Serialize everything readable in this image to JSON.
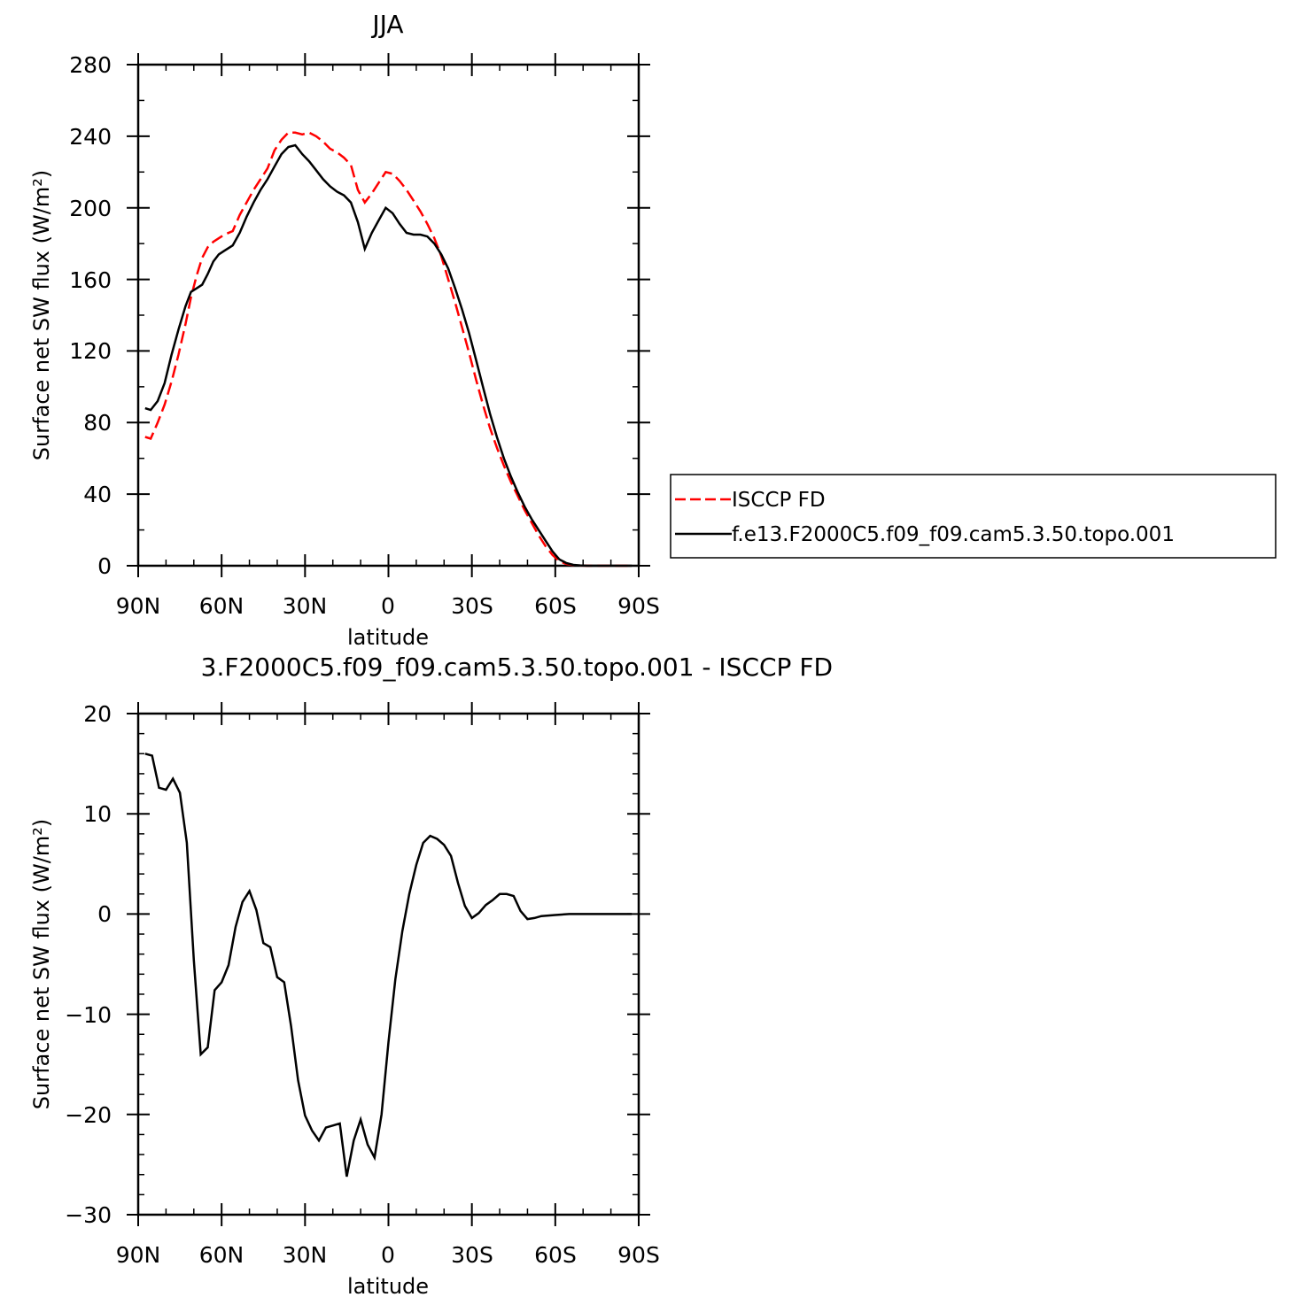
{
  "chart_data": [
    {
      "type": "line",
      "title": "JJA",
      "xlabel": "latitude",
      "ylabel": "Surface net SW flux (W/m²)",
      "xlim": [
        90,
        -90
      ],
      "ylim": [
        0,
        280
      ],
      "xticks": [
        90,
        60,
        30,
        0,
        -30,
        -60,
        -90
      ],
      "xtick_labels": [
        "90N",
        "60N",
        "30N",
        "0",
        "30S",
        "60S",
        "90S"
      ],
      "yticks": [
        0,
        40,
        80,
        120,
        160,
        200,
        240,
        280
      ],
      "ytick_labels": [
        "0",
        "40",
        "80",
        "120",
        "160",
        "200",
        "240",
        "280"
      ],
      "legend_position": "right",
      "series": [
        {
          "name": "ISCCP FD",
          "color": "#ff0000",
          "style": "dashed",
          "points": [
            [
              87.5,
              72
            ],
            [
              85.5,
              71
            ],
            [
              83,
              80
            ],
            [
              80.5,
              90
            ],
            [
              78,
              103
            ],
            [
              75.5,
              118
            ],
            [
              73,
              135
            ],
            [
              71,
              150
            ],
            [
              69,
              162
            ],
            [
              67,
              172
            ],
            [
              65,
              178
            ],
            [
              63,
              181
            ],
            [
              61,
              183
            ],
            [
              59,
              185
            ],
            [
              56,
              187
            ],
            [
              53.5,
              196
            ],
            [
              51,
              203
            ],
            [
              48.5,
              210
            ],
            [
              46,
              216
            ],
            [
              43.5,
              222
            ],
            [
              41,
              232
            ],
            [
              38.5,
              238
            ],
            [
              36,
              242
            ],
            [
              33.5,
              242
            ],
            [
              31,
              241
            ],
            [
              28.5,
              242
            ],
            [
              26,
              240
            ],
            [
              23.5,
              237
            ],
            [
              21,
              233
            ],
            [
              18.5,
              231
            ],
            [
              16,
              228
            ],
            [
              13.5,
              224
            ],
            [
              11,
              210
            ],
            [
              8.5,
              203
            ],
            [
              6,
              208
            ],
            [
              3.5,
              214
            ],
            [
              1,
              220
            ],
            [
              -1.5,
              219
            ],
            [
              -4,
              215
            ],
            [
              -6.5,
              210
            ],
            [
              -9,
              204
            ],
            [
              -11.5,
              198
            ],
            [
              -14,
              191
            ],
            [
              -16.5,
              183
            ],
            [
              -19,
              173
            ],
            [
              -21.5,
              160
            ],
            [
              -24,
              147
            ],
            [
              -26.5,
              133
            ],
            [
              -29,
              119
            ],
            [
              -31.5,
              104
            ],
            [
              -34,
              90
            ],
            [
              -36.5,
              77
            ],
            [
              -39,
              66
            ],
            [
              -41.5,
              56
            ],
            [
              -44,
              47
            ],
            [
              -46.5,
              39
            ],
            [
              -49,
              31
            ],
            [
              -51.5,
              24
            ],
            [
              -54,
              17
            ],
            [
              -56.5,
              11
            ],
            [
              -59,
              6
            ],
            [
              -61.5,
              2.5
            ],
            [
              -64,
              1
            ],
            [
              -66.5,
              0.4
            ],
            [
              -69,
              0.1
            ],
            [
              -71.5,
              0
            ],
            [
              -75,
              0
            ],
            [
              -80,
              0
            ],
            [
              -85,
              0
            ],
            [
              -87.5,
              0
            ]
          ]
        },
        {
          "name": "f.e13.F2000C5.f09_f09.cam5.3.50.topo.001",
          "color": "#000000",
          "style": "solid",
          "points": [
            [
              87.5,
              88
            ],
            [
              85.5,
              87
            ],
            [
              83,
              92
            ],
            [
              80.5,
              102
            ],
            [
              78,
              118
            ],
            [
              75.5,
              132
            ],
            [
              73,
              145
            ],
            [
              71,
              153
            ],
            [
              69,
              155
            ],
            [
              67,
              157
            ],
            [
              65,
              163
            ],
            [
              63,
              170
            ],
            [
              61,
              174
            ],
            [
              59,
              176
            ],
            [
              56,
              179
            ],
            [
              53.5,
              186
            ],
            [
              51,
              195
            ],
            [
              48.5,
              203
            ],
            [
              46,
              210
            ],
            [
              43.5,
              216
            ],
            [
              41,
              223
            ],
            [
              38.5,
              230
            ],
            [
              36,
              234
            ],
            [
              33.5,
              235
            ],
            [
              31,
              230
            ],
            [
              28.5,
              226
            ],
            [
              26,
              221
            ],
            [
              23.5,
              216
            ],
            [
              21,
              212
            ],
            [
              18.5,
              209
            ],
            [
              16,
              207
            ],
            [
              13.5,
              203
            ],
            [
              11,
              192
            ],
            [
              8.5,
              177
            ],
            [
              6,
              186
            ],
            [
              3.5,
              193
            ],
            [
              1,
              200
            ],
            [
              -1.5,
              197
            ],
            [
              -4,
              191
            ],
            [
              -6.5,
              186
            ],
            [
              -9,
              185
            ],
            [
              -11.5,
              185
            ],
            [
              -14,
              184
            ],
            [
              -16.5,
              180
            ],
            [
              -19,
              174
            ],
            [
              -21.5,
              166
            ],
            [
              -24,
              155
            ],
            [
              -26.5,
              143
            ],
            [
              -29,
              130
            ],
            [
              -31.5,
              115
            ],
            [
              -34,
              100
            ],
            [
              -36.5,
              85
            ],
            [
              -39,
              72
            ],
            [
              -41.5,
              60
            ],
            [
              -44,
              50
            ],
            [
              -46.5,
              41
            ],
            [
              -49,
              33
            ],
            [
              -51.5,
              26
            ],
            [
              -54,
              20
            ],
            [
              -56.5,
              14
            ],
            [
              -59,
              8
            ],
            [
              -61.5,
              3.5
            ],
            [
              -64,
              1.5
            ],
            [
              -66.5,
              0.5
            ],
            [
              -69,
              0.2
            ],
            [
              -71.5,
              0
            ],
            [
              -75,
              0
            ],
            [
              -80,
              0
            ],
            [
              -85,
              0
            ],
            [
              -87.5,
              0
            ]
          ]
        }
      ]
    },
    {
      "type": "line",
      "title": "3.F2000C5.f09_f09.cam5.3.50.topo.001 - ISCCP FD",
      "xlabel": "latitude",
      "ylabel": "Surface net SW flux (W/m²)",
      "xlim": [
        90,
        -90
      ],
      "ylim": [
        -30,
        20
      ],
      "xticks": [
        90,
        60,
        30,
        0,
        -30,
        -60,
        -90
      ],
      "xtick_labels": [
        "90N",
        "60N",
        "30N",
        "0",
        "30S",
        "60S",
        "90S"
      ],
      "yticks": [
        -30,
        -20,
        -10,
        0,
        10,
        20
      ],
      "ytick_labels": [
        "−30",
        "−20",
        "−10",
        "0",
        "10",
        "20"
      ],
      "series": [
        {
          "color": "#000000",
          "style": "solid",
          "points": [
            [
              87.5,
              16
            ],
            [
              85,
              15.8
            ],
            [
              82.5,
              12.6
            ],
            [
              80,
              12.4
            ],
            [
              77.5,
              13.5
            ],
            [
              75,
              12.1
            ],
            [
              72.5,
              7.1
            ],
            [
              70,
              -4.6
            ],
            [
              67.5,
              -14.0
            ],
            [
              65,
              -13.3
            ],
            [
              62.5,
              -7.6
            ],
            [
              60,
              -6.8
            ],
            [
              57.5,
              -5.1
            ],
            [
              55,
              -1.3
            ],
            [
              52.5,
              1.2
            ],
            [
              50,
              2.3
            ],
            [
              47.5,
              0.4
            ],
            [
              45,
              -2.9
            ],
            [
              42.5,
              -3.3
            ],
            [
              40,
              -6.3
            ],
            [
              37.5,
              -6.8
            ],
            [
              35,
              -11.2
            ],
            [
              32.5,
              -16.6
            ],
            [
              30,
              -20.1
            ],
            [
              27.5,
              -21.6
            ],
            [
              25,
              -22.6
            ],
            [
              22.5,
              -21.3
            ],
            [
              20,
              -21.1
            ],
            [
              17.5,
              -20.9
            ],
            [
              15,
              -26.2
            ],
            [
              12.5,
              -22.6
            ],
            [
              10,
              -20.5
            ],
            [
              7.5,
              -23.0
            ],
            [
              5,
              -24.3
            ],
            [
              2.5,
              -20.0
            ],
            [
              0,
              -12.8
            ],
            [
              -2.5,
              -6.5
            ],
            [
              -5,
              -1.7
            ],
            [
              -7.5,
              2.0
            ],
            [
              -10,
              4.9
            ],
            [
              -12.5,
              7.1
            ],
            [
              -15,
              7.8
            ],
            [
              -17.5,
              7.5
            ],
            [
              -20,
              6.9
            ],
            [
              -22.5,
              5.8
            ],
            [
              -25,
              3.1
            ],
            [
              -27.5,
              0.8
            ],
            [
              -30,
              -0.4
            ],
            [
              -32.5,
              0.1
            ],
            [
              -35,
              0.9
            ],
            [
              -37.5,
              1.4
            ],
            [
              -40,
              2.0
            ],
            [
              -42.5,
              2.0
            ],
            [
              -45,
              1.8
            ],
            [
              -47.5,
              0.3
            ],
            [
              -50,
              -0.5
            ],
            [
              -52.5,
              -0.4
            ],
            [
              -55,
              -0.2
            ],
            [
              -60,
              -0.1
            ],
            [
              -65,
              0
            ],
            [
              -70,
              0
            ],
            [
              -75,
              0
            ],
            [
              -80,
              0
            ],
            [
              -85,
              0
            ],
            [
              -87.5,
              0
            ]
          ]
        }
      ]
    }
  ]
}
